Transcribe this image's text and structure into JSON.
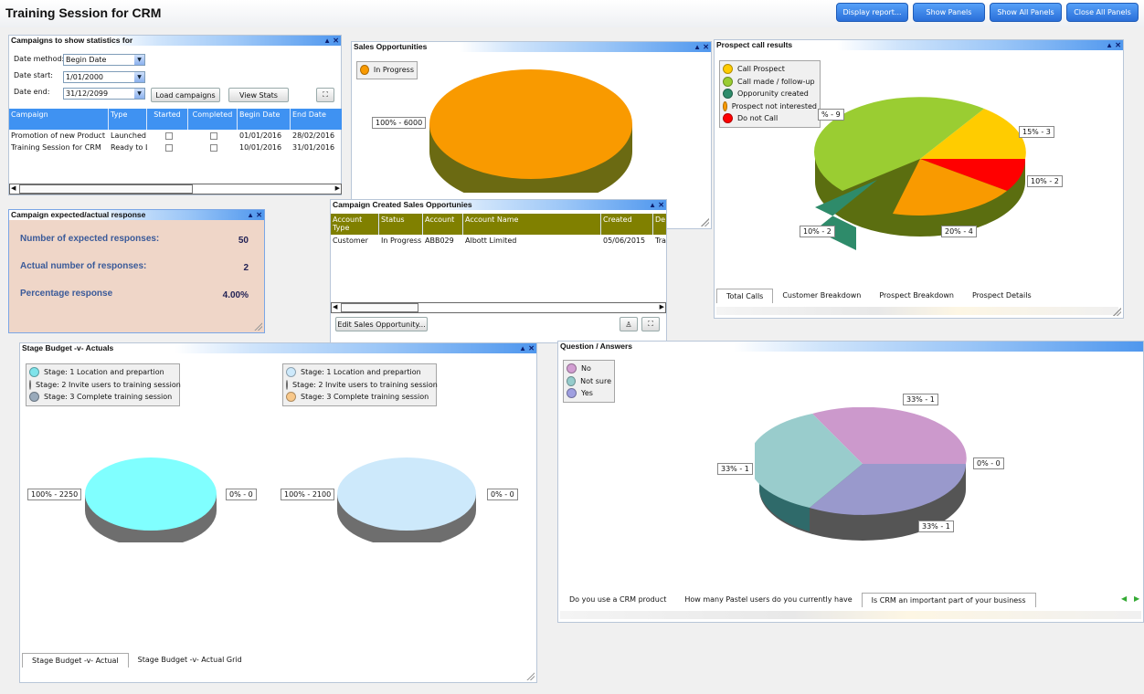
{
  "app": {
    "title": "Training Session for CRM"
  },
  "toolbar": {
    "display_report": "Display report...",
    "show_panels": "Show Panels",
    "show_all": "Show All Panels",
    "close_all": "Close All Panels"
  },
  "campaigns": {
    "title": "Campaigns to show statistics for",
    "date_method_label": "Date method:",
    "date_method": "Begin Date",
    "date_start_label": "Date start:",
    "date_start": "1/01/2000",
    "date_end_label": "Date end:",
    "date_end": "31/12/2099",
    "load_btn": "Load campaigns",
    "view_btn": "View Stats",
    "columns": [
      "Campaign",
      "Type",
      "Started",
      "Completed",
      "Begin Date",
      "End Date"
    ],
    "rows": [
      {
        "campaign": "Promotion of new Product",
        "type": "Launched",
        "begin": "01/01/2016",
        "end": "28/02/2016"
      },
      {
        "campaign": "Training Session for CRM",
        "type": "Ready to L",
        "begin": "10/01/2016",
        "end": "31/01/2016"
      }
    ]
  },
  "sales_opps": {
    "title": "Sales Opportunities",
    "legend": [
      "In Progress"
    ],
    "label": "100% - 6000"
  },
  "prospect": {
    "title": "Prospect call results",
    "legend": [
      "Call Prospect",
      "Call made / follow-up",
      "Opporunity created",
      "Prospect not interested",
      "Do not Call"
    ],
    "labels": [
      "% - 9",
      "15% - 3",
      "10% - 2",
      "20% - 4",
      "10% - 2"
    ],
    "tabs": [
      "Total Calls",
      "Customer Breakdown",
      "Prospect Breakdown",
      "Prospect Details"
    ]
  },
  "response": {
    "title": "Campaign expected/actual response",
    "expected_label": "Number of expected responses:",
    "expected": "50",
    "actual_label": "Actual number of responses:",
    "actual": "2",
    "pct_label": "Percentage response",
    "pct": "4.00%"
  },
  "created": {
    "title": "Campaign Created Sales Opportunies",
    "columns": [
      "Account Type",
      "Status",
      "Account",
      "Account Name",
      "Created",
      "De"
    ],
    "row": {
      "type": "Customer",
      "status": "In Progress",
      "account": "ABB029",
      "name": "Albott Limited",
      "created": "05/06/2015",
      "de": "Tra"
    },
    "edit_btn": "Edit Sales Opportunity..."
  },
  "budget": {
    "title": "Stage Budget -v- Actuals",
    "legend": [
      "Stage: 1 Location and prepartion",
      "Stage: 2 Invite users to training session",
      "Stage: 3 Complete training session"
    ],
    "left_label": "100% - 2250",
    "left_zero": "0% - 0",
    "right_label": "100% - 2100",
    "right_zero": "0% - 0",
    "tabs": [
      "Stage Budget -v- Actual",
      "Stage Budget -v- Actual Grid"
    ]
  },
  "qa": {
    "title": "Question / Answers",
    "legend": [
      "No",
      "Not sure",
      "Yes"
    ],
    "labels": [
      "33% - 1",
      "33% - 1",
      "33% - 1",
      "0% - 0"
    ],
    "tabs": [
      "Do you use a CRM product",
      "How many Pastel users do you currently have",
      "Is CRM an important part of your business"
    ]
  },
  "colors": {
    "accent": "#3f92f2",
    "orange": "#f99a00",
    "green": "#9acd32",
    "yellow": "#ffcc00",
    "red": "#ff0000",
    "teal": "#2e8b6a",
    "response_bg": "#efd6c8"
  }
}
